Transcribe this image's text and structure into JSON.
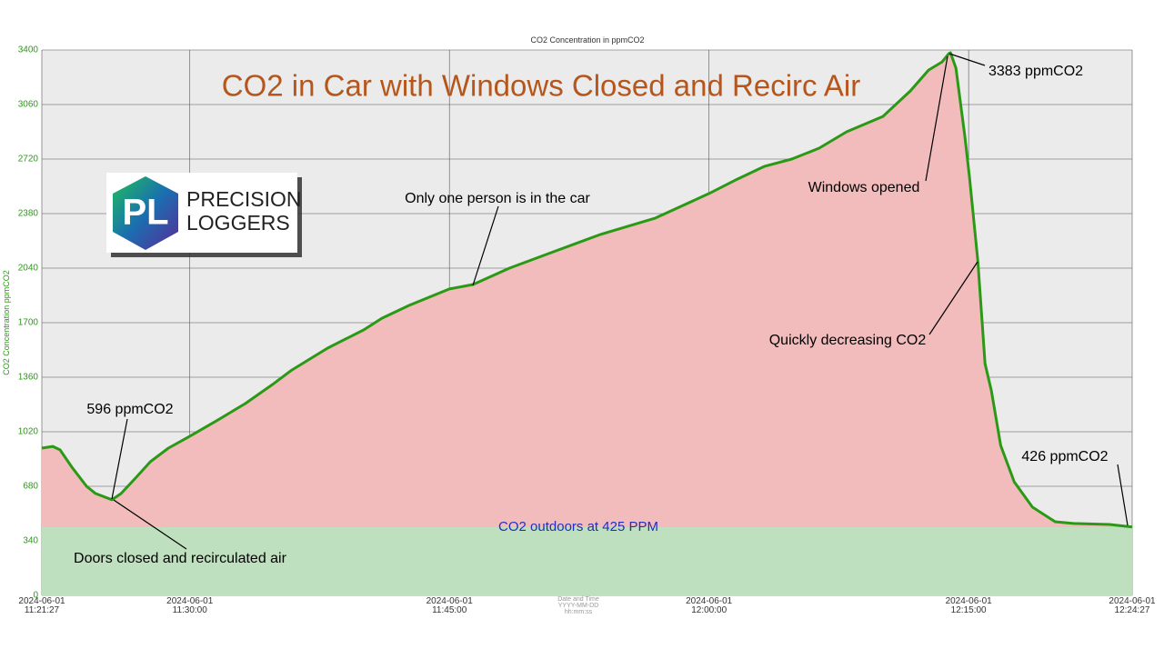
{
  "chart_data": {
    "type": "line",
    "title": "CO2 in Car with Windows Closed and Recirc Air",
    "y_label": "CO2 Concentration ppmCO2",
    "x_label": "Date and Time\nYYYY-MM-DD\nhh:mm:ss",
    "x": [
      "2024-06-01 11:21:27",
      "2024-06-01 11:22:05",
      "2024-06-01 11:22:30",
      "2024-06-01 11:23:14",
      "2024-06-01 11:24:02",
      "2024-06-01 11:24:33",
      "2024-06-01 11:25:30",
      "2024-06-01 11:26:02",
      "2024-06-01 11:26:55",
      "2024-06-01 11:27:43",
      "2024-06-01 11:28:46",
      "2024-06-01 11:30:00",
      "2024-06-01 11:31:38",
      "2024-06-01 11:33:13",
      "2024-06-01 11:34:47",
      "2024-06-01 11:35:50",
      "2024-06-01 11:37:57",
      "2024-06-01 11:40:03",
      "2024-06-01 11:41:06",
      "2024-06-01 11:42:41",
      "2024-06-01 11:45:00",
      "2024-06-01 11:46:22",
      "2024-06-01 11:48:28",
      "2024-06-01 11:50:35",
      "2024-06-01 11:53:44",
      "2024-06-01 11:56:54",
      "2024-06-01 12:00:00",
      "2024-06-01 12:01:38",
      "2024-06-01 12:03:13",
      "2024-06-01 12:04:47",
      "2024-06-01 12:06:22",
      "2024-06-01 12:07:57",
      "2024-06-01 12:10:03",
      "2024-06-01 12:11:38",
      "2024-06-01 12:12:41",
      "2024-06-01 12:13:28",
      "2024-06-01 12:13:51",
      "2024-06-01 12:13:57",
      "2024-06-01 12:14:16",
      "2024-06-01 12:14:47",
      "2024-06-01 12:15:03",
      "2024-06-01 12:15:32",
      "2024-06-01 12:15:57",
      "2024-06-01 12:16:19",
      "2024-06-01 12:16:51",
      "2024-06-01 12:17:38",
      "2024-06-01 12:18:41",
      "2024-06-01 12:20:00",
      "2024-06-01 12:21:03",
      "2024-06-01 12:23:09",
      "2024-06-01 12:24:27"
    ],
    "series": [
      {
        "name": "CO2 Concentration in ppmCO2",
        "color": "#2a9a16",
        "values": [
          918,
          929,
          907,
          793,
          680,
          635,
          596,
          635,
          737,
          833,
          918,
          992,
          1094,
          1196,
          1315,
          1400,
          1541,
          1655,
          1728,
          1808,
          1910,
          1938,
          2040,
          2125,
          2250,
          2352,
          2505,
          2595,
          2675,
          2720,
          2788,
          2890,
          2986,
          3145,
          3275,
          3326,
          3377,
          3383,
          3287,
          2862,
          2607,
          2085,
          1445,
          1275,
          935,
          708,
          550,
          459,
          448,
          442,
          426
        ]
      }
    ],
    "area_color": "#f2bcbc",
    "outdoor_level": 425,
    "outdoor_color": "#bfe0bf",
    "xlim": [
      "2024-06-01 11:21:27",
      "2024-06-01 12:24:27"
    ],
    "xticks": [
      "2024-06-01 11:21:27",
      "2024-06-01 11:30:00",
      "2024-06-01 11:45:00",
      "2024-06-01 12:00:00",
      "2024-06-01 12:15:00",
      "2024-06-01 12:24:27"
    ],
    "ylim": [
      0,
      3400
    ],
    "yticks": [
      0,
      340,
      680,
      1020,
      1360,
      1700,
      2040,
      2380,
      2720,
      3060,
      3400
    ],
    "grid": true,
    "annotations": [
      "3383 ppmCO2",
      "Windows opened",
      "Only one person is in the car",
      "Quickly decreasing CO2",
      "596 ppmCO2",
      "Doors closed and recirculated air",
      "426 ppmCO2",
      "CO2 outdoors at 425 PPM"
    ]
  },
  "logo": {
    "mark": "PL",
    "lines": [
      "PRECISION",
      "LOGGERS"
    ]
  }
}
